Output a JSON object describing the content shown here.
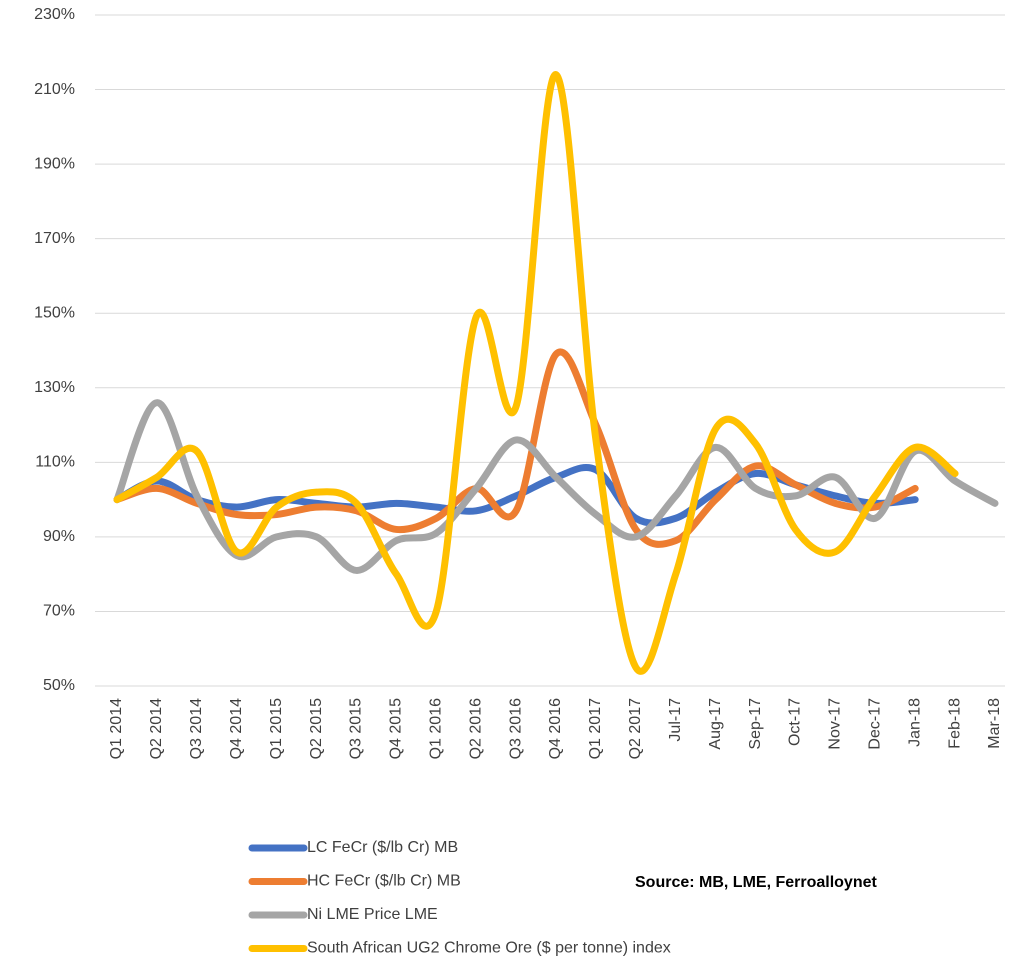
{
  "chart_data": {
    "type": "line",
    "categories": [
      "Q1 2014",
      "Q2 2014",
      "Q3 2014",
      "Q4 2014",
      "Q1 2015",
      "Q2 2015",
      "Q3 2015",
      "Q4 2015",
      "Q1 2016",
      "Q2 2016",
      "Q3 2016",
      "Q4 2016",
      "Q1 2017",
      "Q2 2017",
      "Jul-17",
      "Aug-17",
      "Sep-17",
      "Oct-17",
      "Nov-17",
      "Dec-17",
      "Jan-18",
      "Feb-18",
      "Mar-18"
    ],
    "series": [
      {
        "name": "LC FeCr ($/lb Cr) MB",
        "color": "#4472c4",
        "values": [
          100,
          105,
          100,
          98,
          100,
          99,
          98,
          99,
          98,
          97,
          101,
          106,
          108,
          95,
          95,
          102,
          107,
          104,
          101,
          99,
          100,
          null,
          null
        ]
      },
      {
        "name": "HC FeCr ($/lb Cr) MB",
        "color": "#ed7d31",
        "values": [
          100,
          103,
          99,
          96,
          96,
          98,
          97,
          92,
          95,
          103,
          97,
          139,
          120,
          92,
          89,
          100,
          109,
          104,
          99,
          98,
          103,
          null,
          null
        ]
      },
      {
        "name": "Ni LME Price  LME",
        "color": "#a5a5a5",
        "values": [
          100,
          126,
          101,
          85,
          90,
          90,
          81,
          89,
          91,
          103,
          116,
          106,
          96,
          90,
          101,
          114,
          103,
          101,
          106,
          95,
          113,
          105,
          99
        ]
      },
      {
        "name": "South African UG2 Chrome Ore ($ per tonne) index",
        "color": "#ffc000",
        "values": [
          100,
          106,
          113,
          86,
          98,
          102,
          99,
          80,
          70,
          149,
          125,
          214,
          116,
          55,
          80,
          119,
          115,
          92,
          86,
          101,
          114,
          107,
          null
        ]
      }
    ],
    "ylim": [
      50,
      230
    ],
    "yticks": [
      {
        "value": 50,
        "label": "50%"
      },
      {
        "value": 70,
        "label": "70%"
      },
      {
        "value": 90,
        "label": "90%"
      },
      {
        "value": 110,
        "label": "110%"
      },
      {
        "value": 130,
        "label": "130%"
      },
      {
        "value": 150,
        "label": "150%"
      },
      {
        "value": 170,
        "label": "170%"
      },
      {
        "value": 190,
        "label": "190%"
      },
      {
        "value": 210,
        "label": "210%"
      },
      {
        "value": 230,
        "label": "230%"
      }
    ],
    "grid": true,
    "legend": "bottom",
    "annotation": "Source: MB, LME, Ferroalloynet"
  }
}
